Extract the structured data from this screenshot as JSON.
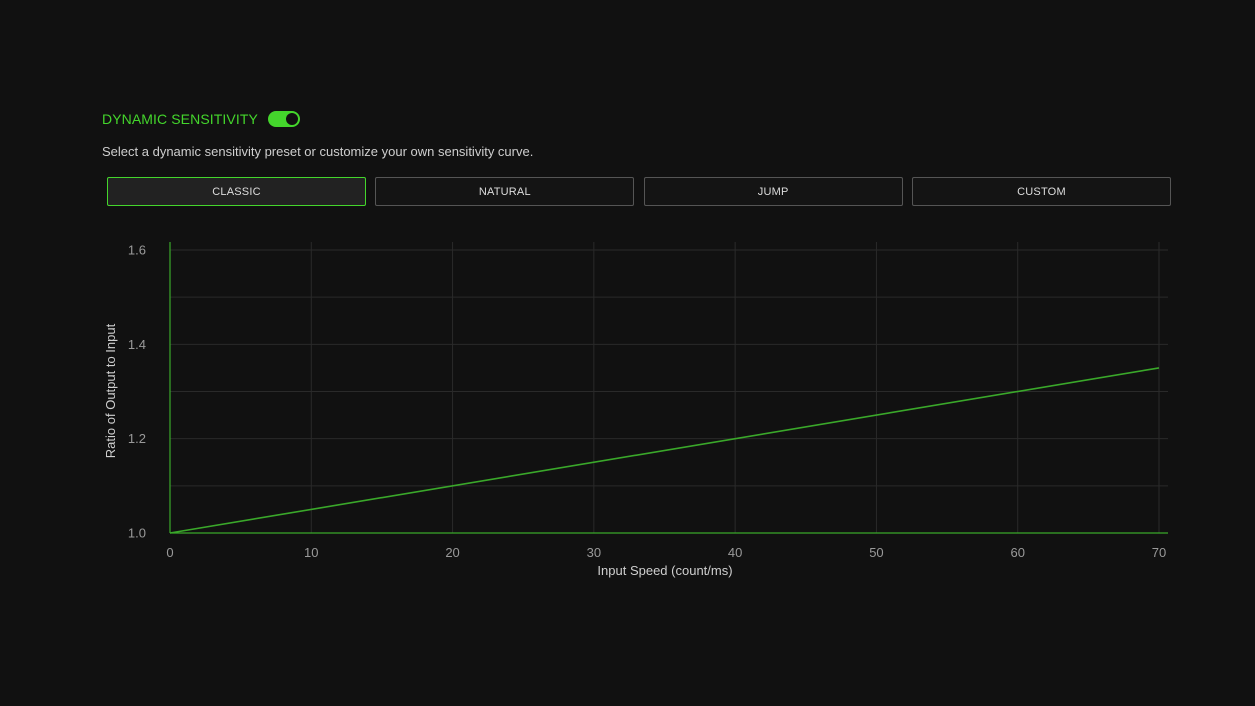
{
  "header": {
    "title": "DYNAMIC SENSITIVITY",
    "toggle_on": true
  },
  "subtitle": "Select a dynamic sensitivity preset or customize your own sensitivity curve.",
  "presets": [
    {
      "label": "CLASSIC",
      "active": true
    },
    {
      "label": "NATURAL",
      "active": false
    },
    {
      "label": "JUMP",
      "active": false
    },
    {
      "label": "CUSTOM",
      "active": false
    }
  ],
  "colors": {
    "accent": "#44d62c",
    "background": "#111111",
    "curve": "#3aa82a"
  },
  "chart_data": {
    "type": "line",
    "xlabel": "Input Speed (count/ms)",
    "ylabel": "Ratio of Output to Input",
    "xlim": [
      0,
      70
    ],
    "ylim": [
      1.0,
      1.6
    ],
    "xticks": [
      0,
      10,
      20,
      30,
      40,
      50,
      60,
      70
    ],
    "yticks": [
      1.0,
      1.2,
      1.4,
      1.6
    ],
    "ytick_labels": [
      "1.0",
      "1.2",
      "1.4",
      "1.6"
    ],
    "grid": true,
    "series": [
      {
        "x": [
          0,
          70
        ],
        "y": [
          1.0,
          1.35
        ]
      }
    ]
  }
}
